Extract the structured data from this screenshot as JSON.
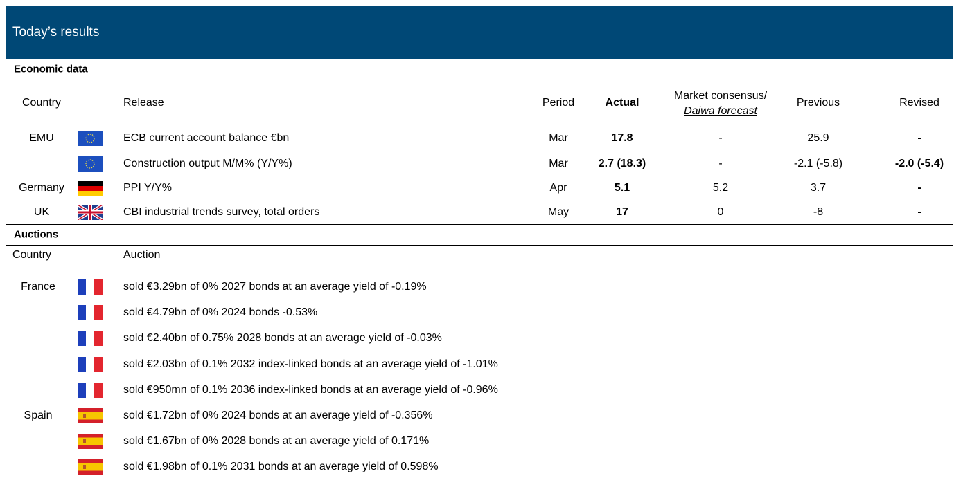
{
  "header": {
    "title": "Today’s results"
  },
  "economic": {
    "title": "Economic data",
    "columns": {
      "country": "Country",
      "release": "Release",
      "period": "Period",
      "actual": "Actual",
      "consensus": [
        "Market consensus/",
        "Daiwa forecast"
      ],
      "previous": "Previous",
      "revised": "Revised"
    },
    "rows": [
      {
        "country": "EMU",
        "release": "ECB current account balance €bn",
        "period": "Mar",
        "actual": "17.8",
        "consensus": "-",
        "previous": "25.9",
        "revised": "-"
      },
      {
        "country": null,
        "release": "Construction output M/M% (Y/Y%)",
        "period": "Mar",
        "actual": "2.7 (18.3)",
        "consensus": "-",
        "previous": "-2.1 (-5.8)",
        "revised": "-2.0 (-5.4)"
      },
      {
        "country": "Germany",
        "release": "PPI Y/Y%",
        "period": "Apr",
        "actual": "5.1",
        "consensus": "5.2",
        "previous": "3.7",
        "revised": "-"
      },
      {
        "country": "UK",
        "release": "CBI industrial trends survey, total orders",
        "period": "May",
        "actual": "17",
        "consensus": "0",
        "previous": "-8",
        "revised": "-"
      }
    ]
  },
  "auctions": {
    "title": "Auctions",
    "columns": {
      "country": "Country",
      "auction": "Auction"
    },
    "rows": [
      {
        "country": "France",
        "auction": "sold €3.29bn of 0% 2027 bonds at an average yield of -0.19%"
      },
      {
        "country": null,
        "auction": "sold €4.79bn of 0% 2024 bonds -0.53%"
      },
      {
        "country": null,
        "auction": "sold €2.40bn of 0.75% 2028 bonds at an average yield of -0.03%"
      },
      {
        "country": null,
        "auction": "sold €2.03bn of 0.1% 2032 index-linked bonds at an average yield of -1.01%"
      },
      {
        "country": null,
        "auction": "sold €950mn of 0.1% 2036 index-linked bonds at an average yield of -0.96%"
      },
      {
        "country": "Spain",
        "auction": "sold €1.72bn of 0% 2024 bonds at an average yield of -0.356%"
      },
      {
        "country": null,
        "auction": "sold €1.67bn of 0% 2028 bonds at an average yield of 0.171%"
      },
      {
        "country": null,
        "auction": "sold €1.98bn of 0.1% 2031 bonds at an average yield of 0.598%"
      }
    ]
  }
}
